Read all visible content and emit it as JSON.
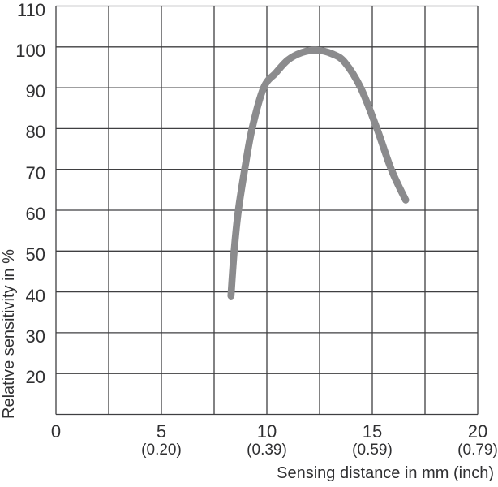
{
  "chart_data": {
    "type": "line",
    "title": "",
    "xlabel": "Sensing distance in mm (inch)",
    "ylabel": "Relative sensitivity in %",
    "xlim": [
      0,
      20
    ],
    "ylim": [
      10,
      110
    ],
    "x_grid_step": 2.5,
    "y_grid_step": 10,
    "grid": true,
    "legend": false,
    "x_ticks": [
      {
        "value": 0,
        "mm": "0",
        "inch": ""
      },
      {
        "value": 5,
        "mm": "5",
        "inch": "(0.20)"
      },
      {
        "value": 10,
        "mm": "10",
        "inch": "(0.39)"
      },
      {
        "value": 15,
        "mm": "15",
        "inch": "(0.59)"
      },
      {
        "value": 20,
        "mm": "20",
        "inch": "(0.79)"
      }
    ],
    "y_ticks": [
      110,
      100,
      90,
      80,
      70,
      60,
      50,
      40,
      30,
      20
    ],
    "series": [
      {
        "name": "Relative sensitivity",
        "points": [
          [
            8.3,
            39
          ],
          [
            8.45,
            50
          ],
          [
            8.65,
            60
          ],
          [
            8.95,
            70
          ],
          [
            9.3,
            80
          ],
          [
            9.85,
            90
          ],
          [
            10.42,
            93.6
          ],
          [
            11.0,
            96.8
          ],
          [
            11.65,
            98.6
          ],
          [
            12.35,
            99.2
          ],
          [
            13.1,
            98.3
          ],
          [
            13.7,
            96.2
          ],
          [
            14.45,
            90
          ],
          [
            15.22,
            80
          ],
          [
            15.9,
            70
          ],
          [
            16.58,
            62.5
          ]
        ]
      }
    ],
    "colors": {
      "curve": "#8b8b8d",
      "grid": "#3f3f41",
      "text": "#303032",
      "background": "#ffffff"
    }
  }
}
